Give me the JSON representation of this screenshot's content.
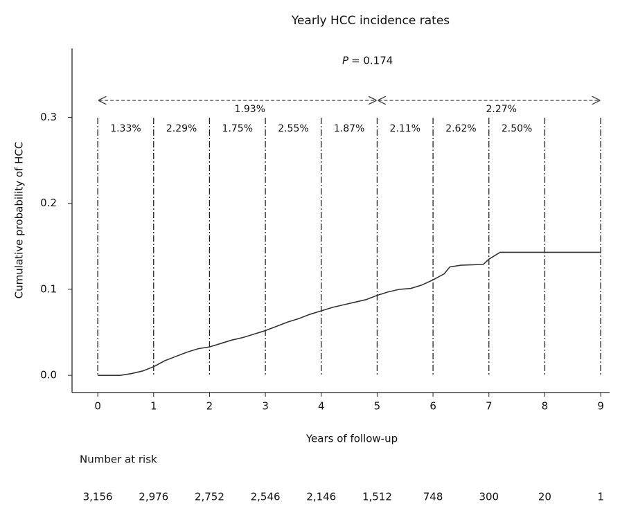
{
  "chart_data": {
    "type": "line",
    "title": "Yearly HCC incidence rates",
    "p_label": "P",
    "p_value": "= 0.174",
    "x_label": "Years of follow-up",
    "y_label": "Cumulative probability of HCC",
    "xlim": [
      -0.46,
      9.16
    ],
    "ylim": [
      -0.02,
      0.38
    ],
    "xticks": [
      0,
      1,
      2,
      3,
      4,
      5,
      6,
      7,
      8,
      9
    ],
    "yticks": [
      {
        "value": 0,
        "label": "0.0"
      },
      0.1,
      0.2,
      0.3
    ],
    "interval_rates": [
      "1.33%",
      "2.29%",
      "1.75%",
      "2.55%",
      "1.87%",
      "2.11%",
      "2.62%",
      "2.50%"
    ],
    "period_rates": [
      {
        "start": 0,
        "end": 5,
        "label": "1.93%"
      },
      {
        "start": 5,
        "end": 9,
        "label": "2.27%"
      }
    ],
    "series": [
      {
        "color": "#333333",
        "x": [
          0,
          0.4,
          0.6,
          0.8,
          1,
          1.2,
          1.4,
          1.6,
          1.8,
          2,
          2.2,
          2.4,
          2.6,
          2.8,
          3,
          3.2,
          3.4,
          3.6,
          3.8,
          4,
          4.2,
          4.4,
          4.6,
          4.8,
          5,
          5.2,
          5.4,
          5.6,
          5.8,
          6,
          6.2,
          6.3,
          6.5,
          6.9,
          7,
          7.2,
          9
        ],
        "values": [
          0,
          0,
          0.002,
          0.005,
          0.01,
          0.017,
          0.022,
          0.027,
          0.031,
          0.033,
          0.037,
          0.041,
          0.044,
          0.048,
          0.052,
          0.057,
          0.062,
          0.066,
          0.071,
          0.075,
          0.079,
          0.082,
          0.085,
          0.088,
          0.093,
          0.097,
          0.1,
          0.101,
          0.105,
          0.111,
          0.118,
          0.126,
          0.128,
          0.129,
          0.135,
          0.143,
          0.143
        ]
      }
    ],
    "at_risk": {
      "title": "Number at risk",
      "values": [
        3156,
        2976,
        2752,
        2546,
        2146,
        1512,
        748,
        300,
        20,
        1
      ],
      "value_labels": [
        "3,156",
        "2,976",
        "2,752",
        "2,546",
        "2,146",
        "1,512",
        "748",
        "300",
        "20",
        "1"
      ]
    }
  }
}
